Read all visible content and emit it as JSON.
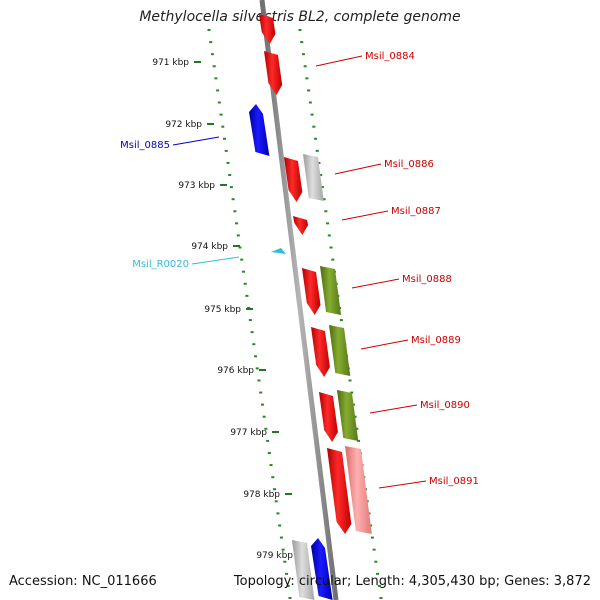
{
  "title": "Methylocella silvestris BL2, complete genome",
  "footer": {
    "accession": "Accession: NC_011666",
    "summary": "Topology: circular; Length: 4,305,430 bp; Genes: 3,872"
  },
  "scale_ticks": [
    {
      "label": "971 kbp",
      "kbp": 971
    },
    {
      "label": "972 kbp",
      "kbp": 972
    },
    {
      "label": "973 kbp",
      "kbp": 973
    },
    {
      "label": "974 kbp",
      "kbp": 974
    },
    {
      "label": "975 kbp",
      "kbp": 975
    },
    {
      "label": "976 kbp",
      "kbp": 976
    },
    {
      "label": "977 kbp",
      "kbp": 977
    },
    {
      "label": "978 kbp",
      "kbp": 978
    },
    {
      "label": "979 kbp",
      "kbp": 979
    }
  ],
  "gene_labels": [
    {
      "text": "Msil_0884",
      "color": "#cc0000"
    },
    {
      "text": "Msil_0885",
      "color": "#0000cc"
    },
    {
      "text": "Msil_0886",
      "color": "#cc0000"
    },
    {
      "text": "Msil_0887",
      "color": "#cc0000"
    },
    {
      "text": "Msil_R0020",
      "color": "#33bbdd"
    },
    {
      "text": "Msil_0888",
      "color": "#cc0000"
    },
    {
      "text": "Msil_0889",
      "color": "#cc0000"
    },
    {
      "text": "Msil_0890",
      "color": "#cc0000"
    },
    {
      "text": "Msil_0891",
      "color": "#cc0000"
    }
  ],
  "colors": {
    "forward_cds": "#ee0000",
    "reverse_cds": "#0000ee",
    "grey_feature": "#bbbbbb",
    "olive_feature": "#6b8e23",
    "pink_feature": "#f08080",
    "rna": "#33bbdd",
    "backbone": "#888888",
    "tick_dots": "#228b22"
  },
  "icons": [
    "forward-gene-arrow",
    "reverse-gene-arrow",
    "trna-marker"
  ]
}
